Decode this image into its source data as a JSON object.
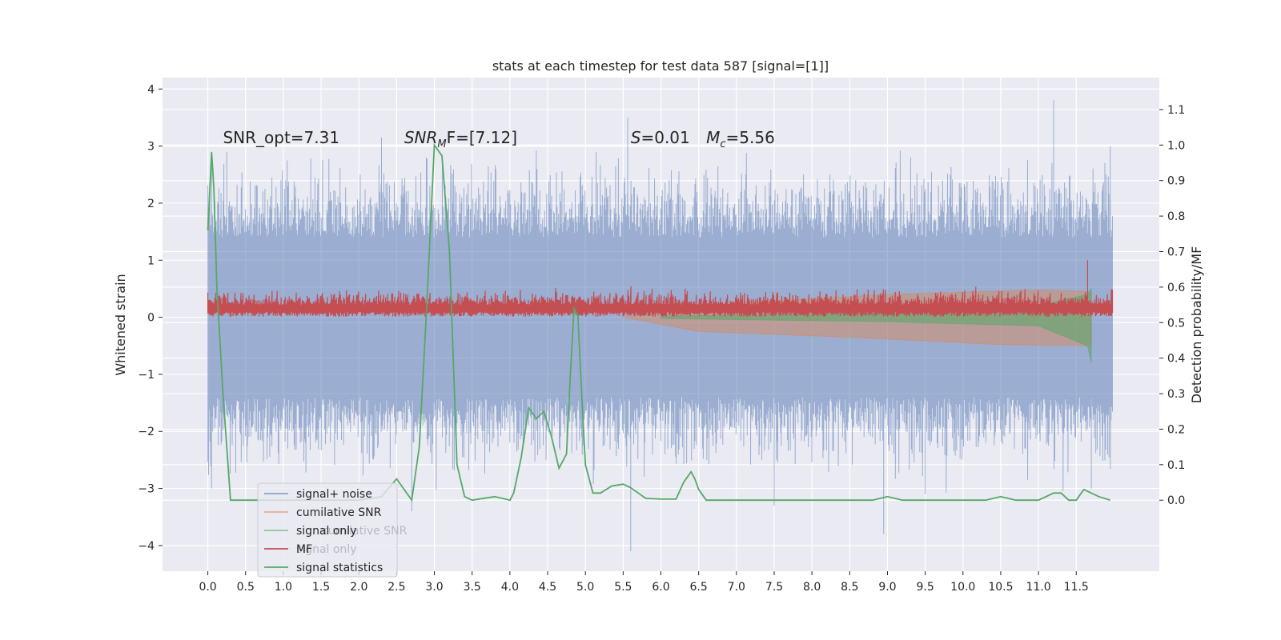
{
  "chart_data": {
    "type": "line",
    "title": "stats at each timestep for test data 587 [signal=[1]]",
    "ylabel_left": "Whitened strain",
    "ylabel_right": "Detection probability/MF",
    "xlim": [
      -0.6,
      12.6
    ],
    "ylim_left": [
      -4.45,
      4.2
    ],
    "ylim_right": [
      -0.2,
      1.19
    ],
    "x_ticks": [
      "0.0",
      "0.5",
      "1.0",
      "1.5",
      "2.0",
      "2.5",
      "3.0",
      "3.5",
      "4.0",
      "4.5",
      "5.0",
      "5.5",
      "6.0",
      "6.5",
      "7.0",
      "7.5",
      "8.0",
      "8.5",
      "9.0",
      "9.5",
      "10.0",
      "10.5",
      "11.0",
      "11.5"
    ],
    "y_ticks_left": [
      "−4",
      "−3",
      "−2",
      "−1",
      "0",
      "1",
      "2",
      "3",
      "4"
    ],
    "y_ticks_right": [
      "0.0",
      "0.1",
      "0.2",
      "0.3",
      "0.4",
      "0.5",
      "0.6",
      "0.7",
      "0.8",
      "0.9",
      "1.0",
      "1.1"
    ],
    "grid": true,
    "annotations": [
      {
        "text": "SNR_opt=7.31",
        "x": 0.2,
        "y": 3.05
      },
      {
        "math": "SNR",
        "sub": "M",
        "rest": "F=[7.12]",
        "x": 2.6,
        "y": 3.05
      },
      {
        "math": "S",
        "rest": "=0.01",
        "x": 5.6,
        "y": 3.05
      },
      {
        "math": "M",
        "sub": "c",
        "rest": "=5.56",
        "x": 6.6,
        "y": 3.05
      }
    ],
    "legend": {
      "location": "lower-left",
      "entries": [
        {
          "label": "signal+ noise",
          "color": "#4c72b0"
        },
        {
          "label": "cumilative SNR",
          "color": "#dd8452"
        },
        {
          "label": "signal only",
          "color": "#55a868"
        },
        {
          "label": "MF",
          "color": "#c44e52"
        },
        {
          "label": "signal statistics",
          "color": "#55a868"
        }
      ],
      "ghost_labels": [
        "cumilative SNR",
        "signal only"
      ]
    },
    "series": [
      {
        "name": "signal+ noise",
        "axis": "left",
        "color": "#4c72b0",
        "kind": "noise band",
        "x_range": [
          0.0,
          11.98
        ],
        "typical_envelope": [
          -2.0,
          2.0
        ],
        "peaks": [
          [
            0.05,
            2.9
          ],
          [
            0.25,
            2.9
          ],
          [
            2.3,
            3.15
          ],
          [
            5.56,
            3.5
          ],
          [
            11.2,
            3.8
          ],
          [
            11.95,
            3.0
          ]
        ],
        "troughs": [
          [
            0.05,
            -3.0
          ],
          [
            2.7,
            -3.4
          ],
          [
            5.6,
            -4.1
          ],
          [
            7.5,
            -3.3
          ],
          [
            8.95,
            -3.8
          ],
          [
            9.5,
            -3.1
          ],
          [
            11.7,
            -3.0
          ]
        ]
      },
      {
        "name": "cumilative SNR",
        "axis": "left",
        "color": "#dd8452",
        "kind": "chirp envelope",
        "x_range": [
          5.5,
          11.7
        ],
        "upper": [
          [
            5.5,
            0.0
          ],
          [
            7.0,
            0.25
          ],
          [
            9.0,
            0.4
          ],
          [
            11.0,
            0.48
          ],
          [
            11.7,
            0.45
          ]
        ],
        "lower": [
          [
            5.5,
            0.0
          ],
          [
            6.5,
            -0.25
          ],
          [
            8.5,
            -0.35
          ],
          [
            10.5,
            -0.48
          ],
          [
            11.7,
            -0.5
          ]
        ]
      },
      {
        "name": "signal only",
        "axis": "left",
        "color": "#55a868",
        "kind": "chirp envelope",
        "x_range": [
          6.0,
          11.7
        ],
        "upper": [
          [
            6.0,
            0.02
          ],
          [
            9.0,
            0.08
          ],
          [
            11.0,
            0.2
          ],
          [
            11.65,
            0.4
          ],
          [
            11.7,
            0.5
          ]
        ],
        "lower": [
          [
            6.0,
            -0.02
          ],
          [
            9.0,
            -0.08
          ],
          [
            11.0,
            -0.15
          ],
          [
            11.65,
            -0.5
          ],
          [
            11.7,
            -0.8
          ]
        ]
      },
      {
        "name": "MF",
        "axis": "left",
        "color": "#c44e52",
        "kind": "band",
        "x_range": [
          0.0,
          11.98
        ],
        "band": [
          0.0,
          0.45
        ],
        "spike": [
          11.65,
          1.0
        ]
      },
      {
        "name": "signal statistics",
        "axis": "right",
        "color": "#55a868",
        "kind": "line",
        "x": [
          0.0,
          0.05,
          0.08,
          0.12,
          0.2,
          0.3,
          0.5,
          0.8,
          1.0,
          1.5,
          2.0,
          2.3,
          2.5,
          2.6,
          2.7,
          2.8,
          2.9,
          3.0,
          3.1,
          3.2,
          3.3,
          3.4,
          3.5,
          3.8,
          4.0,
          4.05,
          4.15,
          4.25,
          4.35,
          4.45,
          4.55,
          4.65,
          4.75,
          4.8,
          4.85,
          4.9,
          4.95,
          5.0,
          5.1,
          5.2,
          5.35,
          5.5,
          5.6,
          5.7,
          5.8,
          6.0,
          6.2,
          6.3,
          6.4,
          6.45,
          6.5,
          6.6,
          6.8,
          7.0,
          7.5,
          8.0,
          8.5,
          8.8,
          9.0,
          9.2,
          9.5,
          10.0,
          10.3,
          10.5,
          10.7,
          11.0,
          11.2,
          11.3,
          11.4,
          11.5,
          11.6,
          11.7,
          11.8,
          11.95
        ],
        "values": [
          0.76,
          0.98,
          0.88,
          0.6,
          0.3,
          0.0,
          0.0,
          0.0,
          0.0,
          0.0,
          0.0,
          0.01,
          0.06,
          0.03,
          0.0,
          0.15,
          0.55,
          1.0,
          0.97,
          0.7,
          0.1,
          0.01,
          0.0,
          0.01,
          0.0,
          0.02,
          0.12,
          0.26,
          0.23,
          0.25,
          0.18,
          0.09,
          0.13,
          0.35,
          0.54,
          0.52,
          0.3,
          0.1,
          0.02,
          0.02,
          0.04,
          0.045,
          0.035,
          0.02,
          0.005,
          0.003,
          0.003,
          0.05,
          0.08,
          0.06,
          0.03,
          0.0,
          0.0,
          0.0,
          0.0,
          0.0,
          0.0,
          0.0,
          0.01,
          0.0,
          0.0,
          0.0,
          0.0,
          0.01,
          0.0,
          0.0,
          0.02,
          0.02,
          0.0,
          0.0,
          0.03,
          0.02,
          0.01,
          0.0
        ]
      }
    ]
  }
}
